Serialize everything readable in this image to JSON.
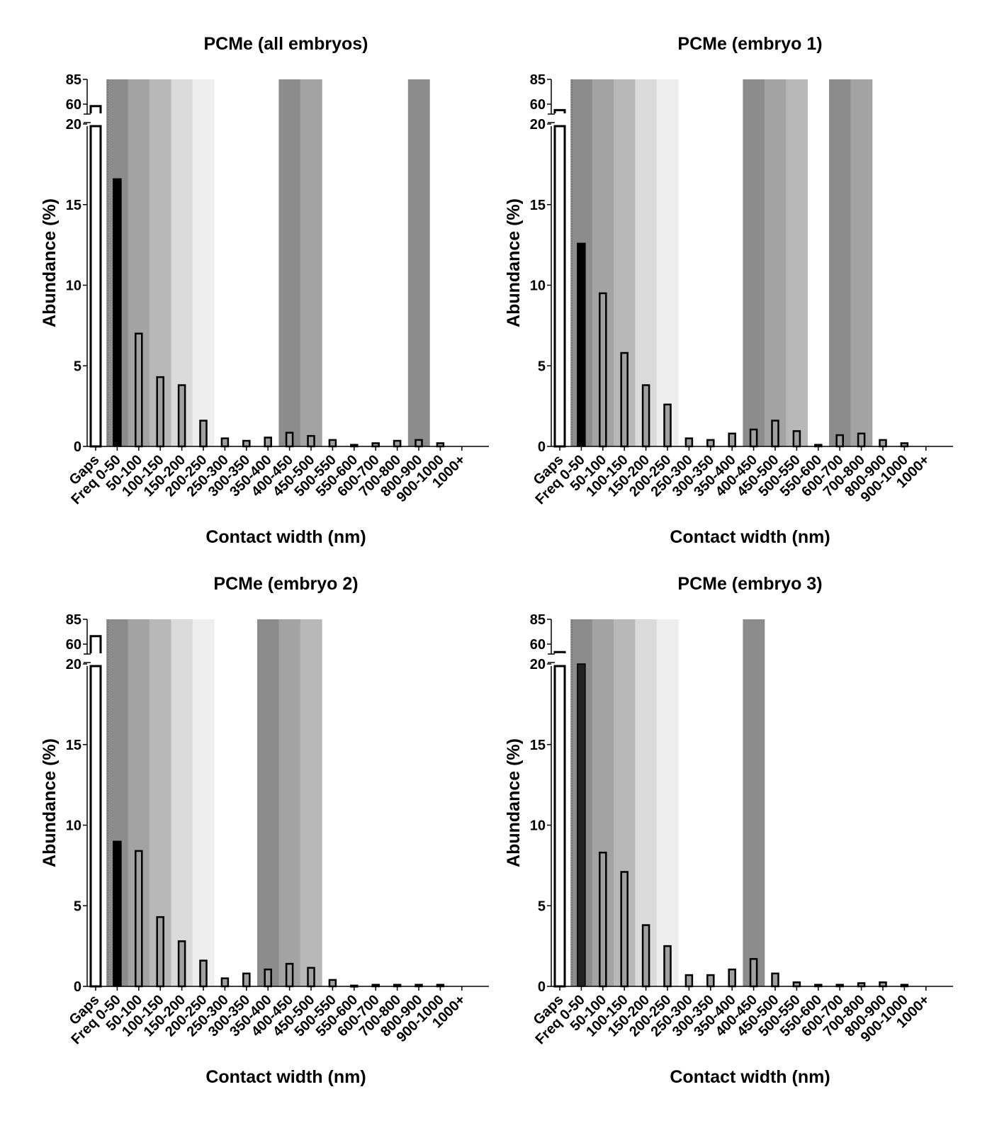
{
  "chart_data": [
    {
      "type": "bar",
      "title": "PCMe (all embryos)",
      "xlabel": "Contact width (nm)",
      "ylabel": "Abundance (%)",
      "categories": [
        "Gaps",
        "Freq 0-50",
        "50-100",
        "100-150",
        "150-200",
        "200-250",
        "250-300",
        "300-350",
        "350-400",
        "400-450",
        "450-500",
        "500-550",
        "550-600",
        "600-700",
        "700-800",
        "800-900",
        "900-1000",
        "1000+"
      ],
      "values": [
        58,
        16.6,
        7.0,
        4.3,
        3.8,
        1.6,
        0.5,
        0.35,
        0.55,
        0.85,
        0.65,
        0.4,
        0.1,
        0.2,
        0.35,
        0.4,
        0.2,
        0
      ],
      "yticks": [
        "0",
        "5",
        "10",
        "15",
        "20",
        "60",
        "85"
      ],
      "ylim": [
        0,
        85
      ],
      "axis_break": [
        20,
        60
      ],
      "shaded_categories": [
        {
          "category": "Freq 0-50",
          "color": "#8c8c8c"
        },
        {
          "category": "50-100",
          "color": "#a3a3a3"
        },
        {
          "category": "100-150",
          "color": "#b8b8b8"
        },
        {
          "category": "150-200",
          "color": "#dadada"
        },
        {
          "category": "200-250",
          "color": "#eeeeee"
        },
        {
          "category": "400-450",
          "color": "#8c8c8c"
        },
        {
          "category": "450-500",
          "color": "#a3a3a3"
        },
        {
          "category": "800-900",
          "color": "#8c8c8c"
        }
      ]
    },
    {
      "type": "bar",
      "title": "PCMe (embryo 1)",
      "xlabel": "Contact width (nm)",
      "ylabel": "Abundance (%)",
      "categories": [
        "Gaps",
        "Freq 0-50",
        "50-100",
        "100-150",
        "150-200",
        "200-250",
        "250-300",
        "300-350",
        "350-400",
        "400-450",
        "450-500",
        "500-550",
        "550-600",
        "600-700",
        "700-800",
        "800-900",
        "900-1000",
        "1000+"
      ],
      "values": [
        54,
        12.6,
        9.5,
        5.8,
        3.8,
        2.6,
        0.5,
        0.4,
        0.8,
        1.05,
        1.6,
        0.95,
        0.1,
        0.7,
        0.8,
        0.4,
        0.2,
        0
      ],
      "yticks": [
        "0",
        "5",
        "10",
        "15",
        "20",
        "60",
        "85"
      ],
      "ylim": [
        0,
        85
      ],
      "axis_break": [
        20,
        60
      ],
      "shaded_categories": [
        {
          "category": "Freq 0-50",
          "color": "#8c8c8c"
        },
        {
          "category": "50-100",
          "color": "#a3a3a3"
        },
        {
          "category": "100-150",
          "color": "#b8b8b8"
        },
        {
          "category": "150-200",
          "color": "#dadada"
        },
        {
          "category": "200-250",
          "color": "#eeeeee"
        },
        {
          "category": "400-450",
          "color": "#8c8c8c"
        },
        {
          "category": "450-500",
          "color": "#a3a3a3"
        },
        {
          "category": "500-550",
          "color": "#b8b8b8"
        },
        {
          "category": "600-700",
          "color": "#8c8c8c"
        },
        {
          "category": "700-800",
          "color": "#a3a3a3"
        }
      ]
    },
    {
      "type": "bar",
      "title": "PCMe (embryo 2)",
      "xlabel": "Contact width (nm)",
      "ylabel": "Abundance (%)",
      "categories": [
        "Gaps",
        "Freq 0-50",
        "50-100",
        "100-150",
        "150-200",
        "200-250",
        "250-300",
        "300-350",
        "350-400",
        "400-450",
        "450-500",
        "500-550",
        "550-600",
        "600-700",
        "700-800",
        "800-900",
        "900-1000",
        "1000+"
      ],
      "values": [
        68,
        9.0,
        8.4,
        4.3,
        2.8,
        1.6,
        0.5,
        0.8,
        1.05,
        1.4,
        1.15,
        0.4,
        0.05,
        0.1,
        0.1,
        0.1,
        0.1,
        0
      ],
      "yticks": [
        "0",
        "5",
        "10",
        "15",
        "20",
        "60",
        "85"
      ],
      "ylim": [
        0,
        85
      ],
      "axis_break": [
        20,
        60
      ],
      "shaded_categories": [
        {
          "category": "Freq 0-50",
          "color": "#8c8c8c"
        },
        {
          "category": "50-100",
          "color": "#a3a3a3"
        },
        {
          "category": "100-150",
          "color": "#b8b8b8"
        },
        {
          "category": "150-200",
          "color": "#dadada"
        },
        {
          "category": "200-250",
          "color": "#eeeeee"
        },
        {
          "category": "350-400",
          "color": "#8c8c8c"
        },
        {
          "category": "400-450",
          "color": "#a3a3a3"
        },
        {
          "category": "450-500",
          "color": "#b8b8b8"
        }
      ]
    },
    {
      "type": "bar",
      "title": "PCMe (embryo 3)",
      "xlabel": "Contact width (nm)",
      "ylabel": "Abundance (%)",
      "categories": [
        "Gaps",
        "Freq 0-50",
        "50-100",
        "100-150",
        "150-200",
        "200-250",
        "250-300",
        "300-350",
        "350-400",
        "400-450",
        "450-500",
        "500-550",
        "550-600",
        "600-700",
        "700-800",
        "800-900",
        "900-1000",
        "1000+"
      ],
      "values": [
        52,
        20,
        8.3,
        7.1,
        3.8,
        2.5,
        0.7,
        0.7,
        1.05,
        1.7,
        0.8,
        0.25,
        0.1,
        0.1,
        0.2,
        0.25,
        0.1,
        0
      ],
      "yticks": [
        "0",
        "5",
        "10",
        "15",
        "20",
        "60",
        "85"
      ],
      "ylim": [
        0,
        85
      ],
      "axis_break": [
        20,
        60
      ],
      "shaded_categories": [
        {
          "category": "Freq 0-50",
          "color": "#8c8c8c"
        },
        {
          "category": "50-100",
          "color": "#a3a3a3"
        },
        {
          "category": "100-150",
          "color": "#b8b8b8"
        },
        {
          "category": "150-200",
          "color": "#dadada"
        },
        {
          "category": "200-250",
          "color": "#eeeeee"
        },
        {
          "category": "400-450",
          "color": "#8c8c8c"
        }
      ]
    }
  ]
}
